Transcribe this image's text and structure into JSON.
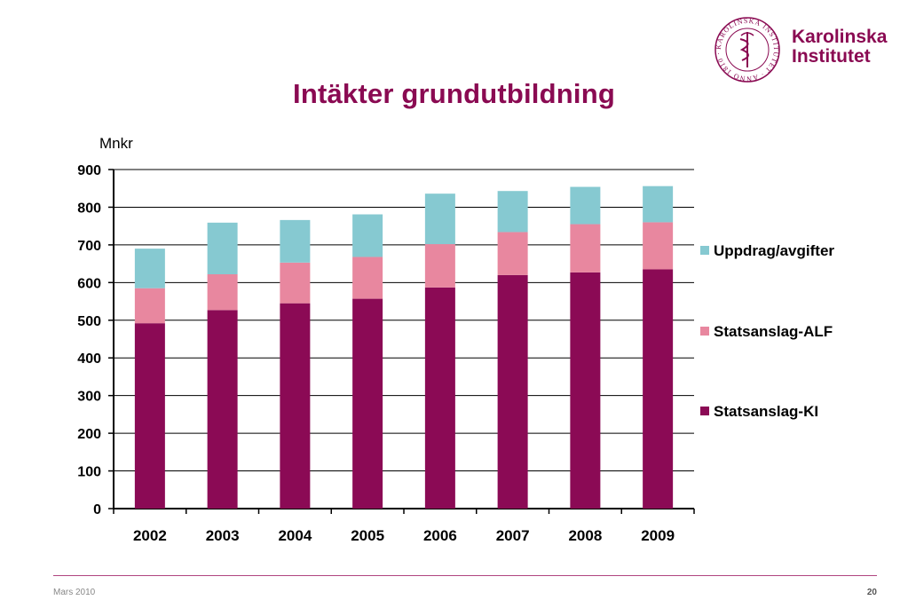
{
  "slide": {
    "title": "Intäkter grundutbildning",
    "footer_left": "Mars 2010",
    "page_number": "20"
  },
  "logo": {
    "line1": "Karolinska",
    "line2": "Institutet",
    "seal_text": "KAROLINSKA INSTITUTET · ANNO 1810 ·",
    "color": "#8a0a52"
  },
  "chart_data": {
    "type": "bar",
    "stacked": true,
    "ylabel": "Mnkr",
    "ylim": [
      0,
      900
    ],
    "yticks": [
      0,
      100,
      200,
      300,
      400,
      500,
      600,
      700,
      800,
      900
    ],
    "grid": true,
    "legend_position": "right",
    "categories": [
      "2002",
      "2003",
      "2004",
      "2005",
      "2006",
      "2007",
      "2008",
      "2009"
    ],
    "series": [
      {
        "name": "Statsanslag-KI",
        "color": "#8b0a55",
        "values": [
          492,
          527,
          545,
          557,
          587,
          620,
          627,
          635
        ]
      },
      {
        "name": "Statsanslag-ALF",
        "color": "#e8879f",
        "values": [
          93,
          95,
          108,
          111,
          115,
          114,
          128,
          125
        ]
      },
      {
        "name": "Uppdrag/avgifter",
        "color": "#86c9d1",
        "values": [
          105,
          137,
          113,
          113,
          134,
          109,
          99,
          96
        ]
      }
    ],
    "legend_order": [
      "Uppdrag/avgifter",
      "Statsanslag-ALF",
      "Statsanslag-KI"
    ]
  }
}
